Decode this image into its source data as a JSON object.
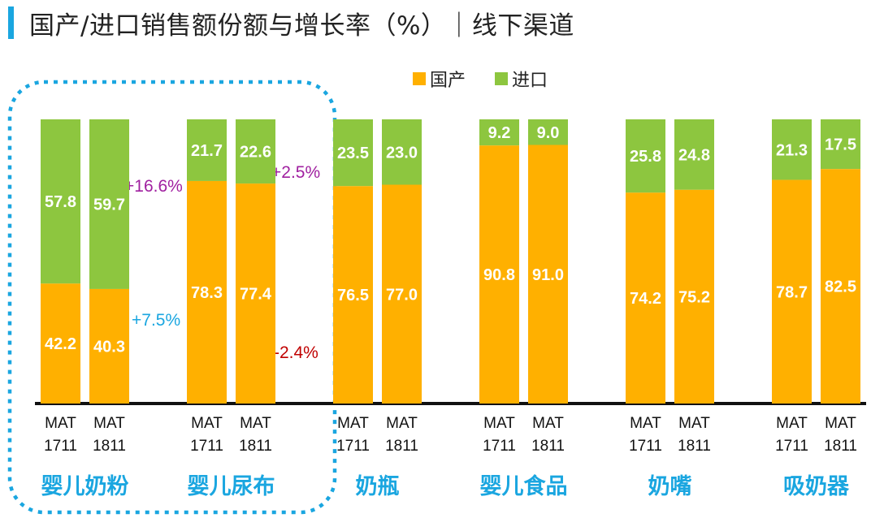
{
  "title": "国产/进口销售额份额与增长率（%）｜线下渠道",
  "chart_data": {
    "type": "bar",
    "stacked": true,
    "title": "国产/进口销售额份额与增长率（%）｜线下渠道",
    "legend": [
      {
        "name": "国产",
        "color": "#ffb000"
      },
      {
        "name": "进口",
        "color": "#8dc63f"
      }
    ],
    "ylim": [
      0,
      100
    ],
    "groups": [
      {
        "name": "婴儿奶粉",
        "bars": [
          {
            "period_line1": "MAT",
            "period_line2": "1711",
            "domestic": 42.2,
            "import": 57.8
          },
          {
            "period_line1": "MAT",
            "period_line2": "1811",
            "domestic": 40.3,
            "import": 59.7
          }
        ],
        "growth": {
          "import": "+16.6%",
          "domestic": "+7.5%"
        }
      },
      {
        "name": "婴儿尿布",
        "bars": [
          {
            "period_line1": "MAT",
            "period_line2": "1711",
            "domestic": 78.3,
            "import": 21.7
          },
          {
            "period_line1": "MAT",
            "period_line2": "1811",
            "domestic": 77.4,
            "import": 22.6
          }
        ],
        "growth": {
          "import": "+2.5%",
          "domestic": "-2.4%"
        }
      },
      {
        "name": "奶瓶",
        "bars": [
          {
            "period_line1": "MAT",
            "period_line2": "1711",
            "domestic": 76.5,
            "import": 23.5
          },
          {
            "period_line1": "MAT",
            "period_line2": "1811",
            "domestic": 77.0,
            "import": 23.0
          }
        ]
      },
      {
        "name": "婴儿食品",
        "bars": [
          {
            "period_line1": "MAT",
            "period_line2": "1711",
            "domestic": 90.8,
            "import": 9.2
          },
          {
            "period_line1": "MAT",
            "period_line2": "1811",
            "domestic": 91.0,
            "import": 9.0
          }
        ]
      },
      {
        "name": "奶嘴",
        "bars": [
          {
            "period_line1": "MAT",
            "period_line2": "1711",
            "domestic": 74.2,
            "import": 25.8
          },
          {
            "period_line1": "MAT",
            "period_line2": "1811",
            "domestic": 75.2,
            "import": 24.8
          }
        ]
      },
      {
        "name": "吸奶器",
        "bars": [
          {
            "period_line1": "MAT",
            "period_line2": "1711",
            "domestic": 78.7,
            "import": 21.3
          },
          {
            "period_line1": "MAT",
            "period_line2": "1811",
            "domestic": 82.5,
            "import": 17.5
          }
        ]
      }
    ],
    "growth_colors": {
      "import": "#a020a0",
      "domestic_up": "#1aa6e0",
      "domestic_down": "#c00000"
    }
  }
}
